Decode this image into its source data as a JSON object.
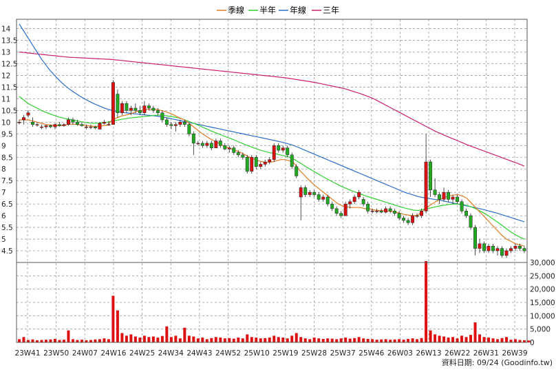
{
  "chart_data": {
    "type": "candlestick",
    "legend": [
      {
        "name": "季線",
        "color": "#e07b21"
      },
      {
        "name": "半年",
        "color": "#2fcf2f"
      },
      {
        "name": "年線",
        "color": "#2a6cc8"
      },
      {
        "name": "三年",
        "color": "#c81e6e"
      }
    ],
    "price_axis": {
      "min": 4.0,
      "max": 14.4,
      "ticks": [
        "14",
        "13.5",
        "13",
        "12.5",
        "12",
        "11.5",
        "11",
        "10.5",
        "10",
        "9.5",
        "9",
        "8.5",
        "8",
        "7.5",
        "7",
        "6.5",
        "6",
        "5.5",
        "5",
        "4.5"
      ]
    },
    "volume_axis": {
      "min": 0,
      "max": 30000,
      "ticks": [
        "30,000",
        "25,000",
        "20,000",
        "15,000",
        "10,000",
        "5,000",
        "0"
      ]
    },
    "x_ticks": [
      "23W41",
      "23W50",
      "24W07",
      "24W16",
      "24W25",
      "24W34",
      "24W43",
      "24W52",
      "25W10",
      "25W19",
      "25W28",
      "25W37",
      "25W46",
      "26W03",
      "26W13",
      "26W22",
      "26W31",
      "26W39"
    ],
    "up_color": "#dd1111",
    "down_color": "#22aa22",
    "volume_color": "#dd1111",
    "source_label": "資料日期: 09/24 (Goodinfo.tw)",
    "ohlc": [
      [
        10.0,
        10.1,
        9.9,
        10.0
      ],
      [
        10.1,
        10.3,
        9.9,
        10.2
      ],
      [
        10.3,
        10.5,
        10.2,
        10.4
      ],
      [
        10.0,
        10.2,
        9.8,
        9.9
      ],
      [
        9.9,
        10.0,
        9.8,
        9.9
      ],
      [
        9.8,
        9.9,
        9.7,
        9.8
      ],
      [
        9.8,
        9.9,
        9.7,
        9.85
      ],
      [
        9.85,
        9.9,
        9.75,
        9.8
      ],
      [
        9.8,
        9.95,
        9.7,
        9.9
      ],
      [
        9.9,
        10.0,
        9.8,
        9.85
      ],
      [
        9.85,
        9.95,
        9.8,
        9.9
      ],
      [
        9.9,
        10.2,
        9.85,
        10.1
      ],
      [
        10.1,
        10.2,
        9.9,
        10.0
      ],
      [
        10.0,
        10.1,
        9.85,
        9.9
      ],
      [
        9.9,
        10.0,
        9.8,
        9.85
      ],
      [
        9.8,
        9.9,
        9.7,
        9.8
      ],
      [
        9.8,
        9.9,
        9.7,
        9.8
      ],
      [
        9.8,
        9.85,
        9.7,
        9.75
      ],
      [
        9.7,
        10.0,
        9.7,
        9.95
      ],
      [
        9.95,
        10.1,
        9.9,
        10.0
      ],
      [
        9.9,
        10.05,
        9.85,
        9.9
      ],
      [
        9.9,
        11.8,
        9.9,
        11.7
      ],
      [
        11.2,
        11.4,
        10.2,
        10.4
      ],
      [
        10.4,
        10.9,
        10.3,
        10.8
      ],
      [
        10.8,
        10.9,
        10.4,
        10.5
      ],
      [
        10.5,
        10.7,
        10.3,
        10.6
      ],
      [
        10.6,
        10.8,
        10.4,
        10.5
      ],
      [
        10.5,
        10.7,
        10.3,
        10.4
      ],
      [
        10.4,
        10.9,
        10.3,
        10.7
      ],
      [
        10.7,
        10.8,
        10.5,
        10.6
      ],
      [
        10.6,
        10.7,
        10.4,
        10.5
      ],
      [
        10.5,
        10.6,
        10.3,
        10.4
      ],
      [
        10.4,
        10.5,
        10.0,
        10.1
      ],
      [
        10.1,
        10.2,
        9.8,
        9.9
      ],
      [
        9.9,
        10.0,
        9.7,
        9.85
      ],
      [
        9.85,
        10.0,
        9.6,
        9.9
      ],
      [
        9.9,
        10.1,
        9.8,
        10.0
      ],
      [
        10.0,
        10.1,
        9.8,
        9.9
      ],
      [
        9.9,
        9.95,
        9.4,
        9.5
      ],
      [
        9.5,
        9.6,
        8.6,
        9.1
      ],
      [
        9.1,
        9.2,
        9.0,
        9.1
      ],
      [
        9.1,
        9.2,
        8.9,
        9.0
      ],
      [
        9.0,
        9.2,
        8.9,
        9.1
      ],
      [
        9.1,
        9.2,
        8.8,
        8.9
      ],
      [
        8.9,
        9.3,
        8.9,
        9.2
      ],
      [
        9.2,
        9.3,
        8.9,
        9.0
      ],
      [
        9.0,
        9.1,
        8.8,
        8.85
      ],
      [
        8.85,
        9.0,
        8.7,
        8.9
      ],
      [
        8.9,
        9.0,
        8.6,
        8.7
      ],
      [
        8.7,
        8.8,
        8.5,
        8.6
      ],
      [
        8.6,
        8.7,
        8.4,
        8.5
      ],
      [
        8.5,
        8.6,
        7.8,
        7.9
      ],
      [
        7.9,
        8.6,
        7.8,
        8.5
      ],
      [
        8.5,
        8.6,
        8.0,
        8.1
      ],
      [
        8.1,
        8.3,
        8.0,
        8.2
      ],
      [
        8.2,
        8.4,
        8.1,
        8.3
      ],
      [
        8.3,
        8.5,
        8.2,
        8.4
      ],
      [
        8.4,
        9.1,
        8.3,
        9.0
      ],
      [
        9.0,
        9.1,
        8.7,
        8.8
      ],
      [
        8.8,
        9.0,
        8.7,
        8.9
      ],
      [
        8.9,
        9.0,
        8.5,
        8.6
      ],
      [
        8.6,
        8.7,
        8.0,
        8.1
      ],
      [
        8.1,
        8.2,
        7.6,
        7.7
      ],
      [
        6.8,
        7.3,
        5.8,
        7.2
      ],
      [
        7.2,
        7.3,
        6.8,
        6.9
      ],
      [
        6.9,
        7.1,
        6.8,
        7.0
      ],
      [
        7.0,
        7.1,
        6.8,
        6.9
      ],
      [
        6.9,
        7.0,
        6.6,
        6.7
      ],
      [
        6.7,
        6.9,
        6.6,
        6.8
      ],
      [
        6.8,
        6.9,
        6.4,
        6.5
      ],
      [
        6.5,
        6.6,
        6.2,
        6.3
      ],
      [
        6.3,
        6.4,
        6.0,
        6.1
      ],
      [
        6.1,
        6.2,
        5.9,
        6.0
      ],
      [
        6.0,
        6.6,
        6.0,
        6.5
      ],
      [
        6.5,
        6.7,
        6.3,
        6.6
      ],
      [
        6.6,
        6.9,
        6.5,
        6.8
      ],
      [
        6.8,
        7.1,
        6.7,
        7.0
      ],
      [
        6.7,
        6.8,
        6.4,
        6.5
      ],
      [
        6.5,
        6.6,
        6.1,
        6.2
      ],
      [
        6.2,
        6.3,
        6.1,
        6.2
      ],
      [
        6.2,
        6.3,
        6.1,
        6.2
      ],
      [
        6.2,
        6.3,
        6.1,
        6.15
      ],
      [
        6.15,
        6.4,
        6.1,
        6.3
      ],
      [
        6.3,
        6.4,
        6.1,
        6.2
      ],
      [
        6.2,
        6.3,
        6.0,
        6.1
      ],
      [
        6.1,
        6.2,
        5.8,
        5.9
      ],
      [
        5.9,
        6.0,
        5.7,
        5.8
      ],
      [
        5.8,
        5.9,
        5.6,
        5.7
      ],
      [
        5.7,
        6.1,
        5.6,
        6.0
      ],
      [
        6.0,
        6.1,
        5.9,
        6.0
      ],
      [
        6.0,
        6.3,
        5.9,
        6.2
      ],
      [
        6.2,
        9.5,
        6.1,
        8.3
      ],
      [
        8.3,
        8.4,
        6.8,
        7.1
      ],
      [
        7.1,
        7.6,
        6.8,
        6.9
      ],
      [
        6.9,
        7.0,
        6.5,
        6.7
      ],
      [
        6.7,
        7.2,
        6.6,
        7.0
      ],
      [
        7.0,
        7.1,
        6.6,
        6.7
      ],
      [
        6.7,
        6.9,
        6.5,
        6.8
      ],
      [
        6.8,
        6.9,
        6.5,
        6.6
      ],
      [
        6.6,
        6.7,
        6.1,
        6.2
      ],
      [
        6.2,
        6.3,
        5.9,
        6.0
      ],
      [
        6.0,
        6.1,
        5.4,
        5.5
      ],
      [
        5.5,
        5.6,
        4.3,
        4.6
      ],
      [
        4.6,
        5.0,
        4.4,
        4.8
      ],
      [
        4.8,
        4.9,
        4.4,
        4.5
      ],
      [
        4.5,
        4.8,
        4.4,
        4.7
      ],
      [
        4.7,
        4.8,
        4.4,
        4.5
      ],
      [
        4.5,
        4.7,
        4.3,
        4.6
      ],
      [
        4.6,
        4.7,
        4.2,
        4.3
      ],
      [
        4.3,
        4.6,
        4.2,
        4.5
      ],
      [
        4.5,
        4.7,
        4.4,
        4.6
      ],
      [
        4.6,
        4.8,
        4.5,
        4.7
      ],
      [
        4.7,
        4.8,
        4.5,
        4.6
      ],
      [
        4.6,
        4.7,
        4.4,
        4.5
      ]
    ],
    "volume": [
      1200,
      2000,
      900,
      1100,
      800,
      900,
      1000,
      1100,
      1300,
      900,
      1000,
      4500,
      1200,
      900,
      1000,
      800,
      900,
      1100,
      1200,
      1500,
      1200,
      17500,
      12000,
      3500,
      2500,
      3000,
      2200,
      1800,
      2500,
      2000,
      2200,
      1800,
      2400,
      6000,
      2000,
      2500,
      1500,
      5500,
      2500,
      2200,
      1500,
      1800,
      1200,
      1600,
      2000,
      1800,
      1500,
      1600,
      1400,
      1800,
      1500,
      3000,
      2000,
      1800,
      1500,
      1600,
      1800,
      2500,
      2000,
      1800,
      1500,
      2500,
      3500,
      2000,
      1500,
      1200,
      1800,
      1500,
      1300,
      1500,
      1400,
      1200,
      1500,
      1800,
      1400,
      1600,
      2000,
      1500,
      1300,
      1200,
      1000,
      1100,
      1200,
      1000,
      1100,
      1200,
      1000,
      1300,
      1500,
      1200,
      1600,
      30500,
      4500,
      3000,
      2500,
      2200,
      1800,
      2000,
      1500,
      2500,
      2000,
      2800,
      7500,
      3000,
      2000,
      1800,
      1500,
      1200,
      1600,
      2000,
      1000,
      1200,
      900,
      800,
      700
    ],
    "ma_quarter": [
      10.1,
      10.1,
      10.1,
      10.05,
      10.0,
      9.95,
      9.9,
      9.88,
      9.86,
      9.85,
      9.86,
      9.9,
      9.92,
      9.9,
      9.88,
      9.86,
      9.84,
      9.82,
      9.82,
      9.85,
      9.88,
      10.1,
      10.18,
      10.26,
      10.3,
      10.35,
      10.42,
      10.48,
      10.52,
      10.55,
      10.55,
      10.55,
      10.5,
      10.45,
      10.38,
      10.3,
      10.2,
      10.12,
      10.0,
      9.85,
      9.7,
      9.55,
      9.42,
      9.3,
      9.2,
      9.1,
      9.0,
      8.92,
      8.85,
      8.78,
      8.7,
      8.6,
      8.5,
      8.42,
      8.35,
      8.3,
      8.28,
      8.3,
      8.35,
      8.4,
      8.4,
      8.35,
      8.25,
      8.0,
      7.8,
      7.6,
      7.42,
      7.25,
      7.1,
      6.95,
      6.8,
      6.65,
      6.5,
      6.42,
      6.38,
      6.35,
      6.35,
      6.35,
      6.3,
      6.3,
      6.25,
      6.22,
      6.22,
      6.2,
      6.18,
      6.15,
      6.1,
      6.05,
      6.02,
      6.0,
      6.02,
      6.2,
      6.35,
      6.48,
      6.6,
      6.7,
      6.78,
      6.85,
      6.88,
      6.9,
      6.85,
      6.75,
      6.55,
      6.35,
      6.15,
      5.95,
      5.75,
      5.55,
      5.35,
      5.15,
      5.0,
      4.9,
      4.8,
      4.75,
      4.7
    ],
    "ma_half": [
      11.1,
      10.95,
      10.8,
      10.7,
      10.6,
      10.5,
      10.42,
      10.35,
      10.28,
      10.22,
      10.17,
      10.13,
      10.1,
      10.06,
      10.02,
      9.99,
      9.96,
      9.95,
      9.96,
      9.98,
      10.0,
      10.05,
      10.08,
      10.12,
      10.15,
      10.18,
      10.2,
      10.22,
      10.24,
      10.26,
      10.28,
      10.3,
      10.3,
      10.28,
      10.25,
      10.22,
      10.18,
      10.12,
      10.05,
      9.98,
      9.9,
      9.82,
      9.74,
      9.65,
      9.57,
      9.5,
      9.42,
      9.35,
      9.28,
      9.2,
      9.12,
      9.04,
      8.97,
      8.9,
      8.83,
      8.77,
      8.72,
      8.68,
      8.64,
      8.6,
      8.55,
      8.5,
      8.42,
      8.3,
      8.18,
      8.06,
      7.95,
      7.84,
      7.73,
      7.62,
      7.52,
      7.42,
      7.32,
      7.23,
      7.15,
      7.07,
      7.0,
      6.93,
      6.86,
      6.8,
      6.74,
      6.68,
      6.62,
      6.56,
      6.5,
      6.44,
      6.38,
      6.33,
      6.28,
      6.24,
      6.22,
      6.26,
      6.3,
      6.34,
      6.38,
      6.42,
      6.45,
      6.48,
      6.5,
      6.5,
      6.48,
      6.44,
      6.38,
      6.3,
      6.2,
      6.1,
      5.98,
      5.85,
      5.72,
      5.58,
      5.44,
      5.3,
      5.18,
      5.08,
      5.0
    ],
    "ma_year": [
      14.2,
      13.9,
      13.6,
      13.3,
      13.0,
      12.7,
      12.45,
      12.2,
      12.0,
      11.8,
      11.62,
      11.46,
      11.32,
      11.2,
      11.08,
      10.97,
      10.87,
      10.78,
      10.7,
      10.62,
      10.55,
      10.5,
      10.46,
      10.43,
      10.4,
      10.38,
      10.36,
      10.34,
      10.32,
      10.3,
      10.28,
      10.26,
      10.23,
      10.2,
      10.16,
      10.12,
      10.08,
      10.04,
      10.0,
      9.96,
      9.92,
      9.88,
      9.84,
      9.8,
      9.76,
      9.72,
      9.68,
      9.64,
      9.6,
      9.56,
      9.52,
      9.48,
      9.44,
      9.4,
      9.36,
      9.32,
      9.28,
      9.24,
      9.2,
      9.16,
      9.11,
      9.06,
      9.0,
      8.92,
      8.84,
      8.76,
      8.68,
      8.6,
      8.52,
      8.44,
      8.36,
      8.28,
      8.2,
      8.12,
      8.04,
      7.96,
      7.88,
      7.8,
      7.72,
      7.64,
      7.56,
      7.48,
      7.4,
      7.32,
      7.24,
      7.16,
      7.08,
      7.0,
      6.94,
      6.88,
      6.82,
      6.78,
      6.75,
      6.72,
      6.69,
      6.66,
      6.62,
      6.58,
      6.54,
      6.5,
      6.46,
      6.42,
      6.38,
      6.34,
      6.3,
      6.25,
      6.2,
      6.15,
      6.1,
      6.04,
      5.98,
      5.92,
      5.86,
      5.8,
      5.74
    ],
    "ma_3year": [
      13.0,
      12.98,
      12.96,
      12.94,
      12.92,
      12.9,
      12.88,
      12.86,
      12.84,
      12.82,
      12.8,
      12.78,
      12.77,
      12.76,
      12.75,
      12.74,
      12.73,
      12.72,
      12.71,
      12.7,
      12.69,
      12.68,
      12.66,
      12.64,
      12.62,
      12.6,
      12.58,
      12.56,
      12.54,
      12.52,
      12.5,
      12.48,
      12.46,
      12.44,
      12.42,
      12.4,
      12.38,
      12.36,
      12.34,
      12.32,
      12.3,
      12.28,
      12.26,
      12.24,
      12.22,
      12.2,
      12.18,
      12.16,
      12.14,
      12.12,
      12.1,
      12.08,
      12.06,
      12.04,
      12.02,
      12.0,
      11.98,
      11.96,
      11.94,
      11.92,
      11.9,
      11.87,
      11.84,
      11.81,
      11.78,
      11.75,
      11.72,
      11.69,
      11.65,
      11.61,
      11.57,
      11.53,
      11.49,
      11.45,
      11.4,
      11.34,
      11.28,
      11.22,
      11.15,
      11.08,
      11.0,
      10.9,
      10.8,
      10.7,
      10.6,
      10.5,
      10.4,
      10.3,
      10.2,
      10.1,
      10.0,
      9.9,
      9.8,
      9.7,
      9.6,
      9.52,
      9.44,
      9.36,
      9.28,
      9.2,
      9.12,
      9.04,
      8.97,
      8.9,
      8.83,
      8.76,
      8.69,
      8.62,
      8.55,
      8.48,
      8.41,
      8.34,
      8.27,
      8.2,
      8.12
    ]
  }
}
